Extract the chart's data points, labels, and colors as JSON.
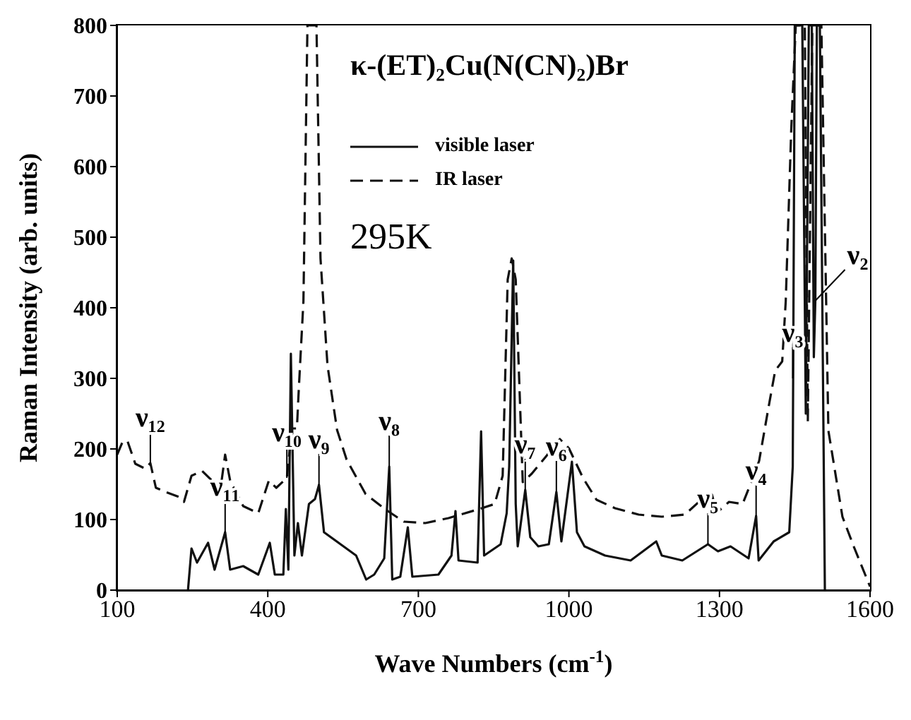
{
  "chart_data": {
    "type": "line",
    "title": "κ-(ET)₂Cu(N(CN)₂)Br",
    "xlabel": "Wave Numbers (cm$^{-1}$)",
    "ylabel": "Raman Intensity (arb. units)",
    "xlim": [
      100,
      1600
    ],
    "xticks": [
      100,
      400,
      700,
      1000,
      1300,
      1600
    ],
    "ylim": [
      0,
      800
    ],
    "yticks": [
      0,
      100,
      200,
      300,
      400,
      500,
      600,
      700,
      800
    ],
    "grid": false,
    "legend": "top left",
    "marker": "none",
    "series": [
      {
        "name": "visible laser",
        "color": "#111111",
        "line_style": "solid",
        "x": [
          241,
          248,
          259,
          281,
          294,
          315,
          325,
          351,
          381,
          404,
          414,
          431,
          436,
          441,
          446,
          453,
          460,
          468,
          482,
          494,
          502,
          512,
          545,
          576,
          596,
          612,
          632,
          642,
          648,
          664,
          679,
          688,
          740,
          766,
          774,
          780,
          818,
          825,
          831,
          864,
          876,
          881,
          889,
          894,
          898,
          913,
          923,
          939,
          960,
          975,
          985,
          1006,
          1016,
          1031,
          1072,
          1123,
          1174,
          1185,
          1226,
          1277,
          1297,
          1322,
          1358,
          1373,
          1378,
          1408,
          1439,
          1446,
          1450,
          1465,
          1472,
          1478,
          1484,
          1488,
          1491,
          1494,
          1500,
          1510
        ],
        "values": [
          0,
          59,
          39,
          67,
          29,
          82,
          29,
          34,
          22,
          67,
          22,
          22,
          115,
          29,
          335,
          49,
          95,
          49,
          122,
          129,
          149,
          82,
          65,
          49,
          15,
          22,
          45,
          175,
          15,
          19,
          89,
          19,
          22,
          49,
          112,
          42,
          39,
          225,
          49,
          65,
          109,
          175,
          467,
          122,
          62,
          142,
          75,
          62,
          65,
          139,
          69,
          182,
          82,
          62,
          49,
          42,
          69,
          49,
          42,
          65,
          55,
          62,
          45,
          105,
          42,
          69,
          82,
          175,
          800,
          800,
          250,
          800,
          800,
          330,
          410,
          800,
          800,
          0
        ]
      },
      {
        "name": "IR laser",
        "color": "#111111",
        "line_style": "dashed",
        "x": [
          100,
          110,
          120,
          136,
          156,
          166,
          177,
          197,
          223,
          233,
          248,
          269,
          289,
          305,
          315,
          325,
          351,
          381,
          402,
          417,
          438,
          448,
          458,
          462,
          471,
          479,
          497,
          505,
          519,
          538,
          557,
          595,
          633,
          671,
          714,
          760,
          822,
          852,
          868,
          878,
          886,
          894,
          908,
          926,
          954,
          982,
          1000,
          1028,
          1055,
          1092,
          1139,
          1185,
          1231,
          1259,
          1285,
          1295,
          1319,
          1346,
          1360,
          1379,
          1397,
          1411,
          1425,
          1432,
          1443,
          1452,
          1470,
          1476,
          1485,
          1503,
          1517,
          1545,
          1568,
          1596,
          1600
        ],
        "values": [
          192,
          209,
          212,
          179,
          172,
          180,
          145,
          139,
          132,
          125,
          162,
          169,
          155,
          139,
          192,
          155,
          119,
          109,
          155,
          145,
          159,
          229,
          229,
          288,
          409,
          800,
          800,
          470,
          318,
          227,
          185,
          136,
          115,
          97,
          95,
          102,
          115,
          122,
          162,
          440,
          470,
          440,
          153,
          165,
          189,
          214,
          201,
          159,
          128,
          116,
          107,
          104,
          107,
          125,
          135,
          110,
          125,
          122,
          147,
          183,
          256,
          311,
          324,
          409,
          653,
          800,
          800,
          238,
          800,
          800,
          226,
          104,
          61,
          12,
          5
        ]
      }
    ],
    "annotations": [
      "295K",
      {
        "text": "ν₁₂",
        "x": 166,
        "y": 180
      },
      {
        "text": "ν₁₁",
        "x": 315,
        "y": 82
      },
      {
        "text": "ν₁₀",
        "x": 438,
        "y": 159
      },
      {
        "text": "ν₉",
        "x": 502,
        "y": 149
      },
      {
        "text": "ν₈",
        "x": 642,
        "y": 175
      },
      {
        "text": "ν₇",
        "x": 913,
        "y": 142
      },
      {
        "text": "ν₆",
        "x": 975,
        "y": 139
      },
      {
        "text": "ν₅",
        "x": 1277,
        "y": 65
      },
      {
        "text": "ν₄",
        "x": 1373,
        "y": 105
      },
      {
        "text": "ν₃",
        "x": 1446,
        "y": 300
      },
      {
        "text": "ν₂",
        "x": 1491,
        "y": 410
      }
    ]
  }
}
